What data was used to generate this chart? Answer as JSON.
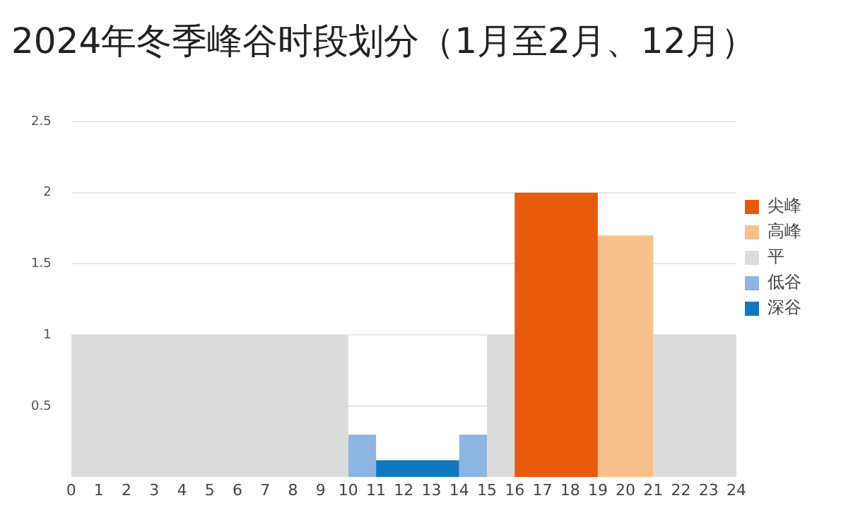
{
  "chart_data": {
    "type": "histogram",
    "title": "2024年冬季峰谷时段划分（1月至2月、12月）",
    "bins": [
      0,
      10,
      11,
      14,
      15,
      16,
      19,
      21,
      24
    ],
    "series": [
      {
        "name": "尖峰",
        "color": "#e85b0c",
        "values": [
          null,
          null,
          null,
          null,
          null,
          2,
          null,
          null
        ]
      },
      {
        "name": "高峰",
        "color": "#f8c08a",
        "values": [
          null,
          null,
          null,
          null,
          null,
          null,
          1.7,
          null
        ]
      },
      {
        "name": "平",
        "color": "#dcdcdc",
        "values": [
          1,
          null,
          null,
          null,
          1,
          null,
          null,
          1
        ]
      },
      {
        "name": "低谷",
        "color": "#8db4e2",
        "values": [
          null,
          0.3,
          null,
          0.3,
          null,
          null,
          null,
          null
        ]
      },
      {
        "name": "深谷",
        "color": "#0f79bf",
        "values": [
          null,
          null,
          0.12,
          null,
          null,
          null,
          null,
          null
        ]
      }
    ],
    "xlim": [
      0,
      24
    ],
    "xticks": [
      0,
      1,
      2,
      3,
      4,
      5,
      6,
      7,
      8,
      9,
      10,
      11,
      12,
      13,
      14,
      15,
      16,
      17,
      18,
      19,
      20,
      21,
      22,
      23,
      24
    ],
    "ylim": [
      0,
      2.5
    ],
    "yticks": [
      0.5,
      1,
      1.5,
      2,
      2.5
    ],
    "grid": "y",
    "legend": "right"
  }
}
